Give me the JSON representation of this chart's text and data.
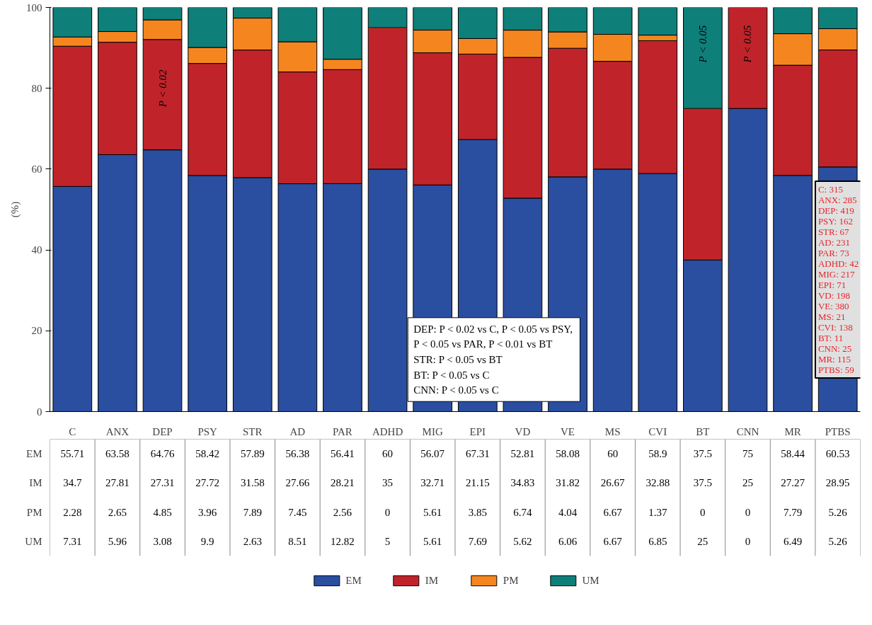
{
  "chart_data": {
    "type": "bar",
    "stacked": true,
    "ylabel": "(%)",
    "categories": [
      "C",
      "ANX",
      "DEP",
      "PSY",
      "STR",
      "AD",
      "PAR",
      "ADHD",
      "MIG",
      "EPI",
      "VD",
      "VE",
      "MS",
      "CVI",
      "BT",
      "CNN",
      "MR",
      "PTBS"
    ],
    "series": [
      {
        "name": "EM",
        "color": "#2a4ea0",
        "values": [
          55.71,
          63.58,
          64.76,
          58.42,
          57.89,
          56.38,
          56.41,
          60,
          56.07,
          67.31,
          52.81,
          58.08,
          60,
          58.9,
          37.5,
          75,
          58.44,
          60.53
        ]
      },
      {
        "name": "IM",
        "color": "#c0242a",
        "values": [
          34.7,
          27.81,
          27.31,
          27.72,
          31.58,
          27.66,
          28.21,
          35,
          32.71,
          21.15,
          34.83,
          31.82,
          26.67,
          32.88,
          37.5,
          25,
          27.27,
          28.95
        ]
      },
      {
        "name": "PM",
        "color": "#f5861f",
        "values": [
          2.28,
          2.65,
          4.85,
          3.96,
          7.89,
          7.45,
          2.56,
          0,
          5.61,
          3.85,
          6.74,
          4.04,
          6.67,
          1.37,
          0,
          0,
          7.79,
          5.26
        ]
      },
      {
        "name": "UM",
        "color": "#0f7f7a",
        "values": [
          7.31,
          5.96,
          3.08,
          9.9,
          2.63,
          8.51,
          12.82,
          5,
          5.61,
          7.69,
          5.62,
          6.06,
          6.67,
          6.85,
          25,
          0,
          6.49,
          5.26
        ]
      }
    ],
    "ylim": [
      0,
      100
    ],
    "yticks": [
      0,
      20,
      40,
      60,
      80,
      100
    ],
    "data_labels": true,
    "grid": false,
    "legend": "bottom",
    "annotations": [
      "P < 0.02",
      "P < 0.05",
      "P < 0.05",
      "DEP: P < 0.02 vs C, P < 0.05 vs PSY,\n        P < 0.05 vs PAR, P < 0.01 vs BT\nSTR: P < 0.05 vs BT\nBT: P < 0.05 vs C\nCNN: P < 0.05 vs C",
      "C: 315\nANX: 285\nDEP: 419\nPSY: 162\nSTR: 67\nAD: 231\nPAR: 73\nADHD: 42\nMIG: 217\nEPI: 71\nVD: 198\nVE: 380\nMS: 21\nCVI: 138\nBT: 11\nCNN: 25\nMR: 115\nPTBS: 59"
    ]
  }
}
